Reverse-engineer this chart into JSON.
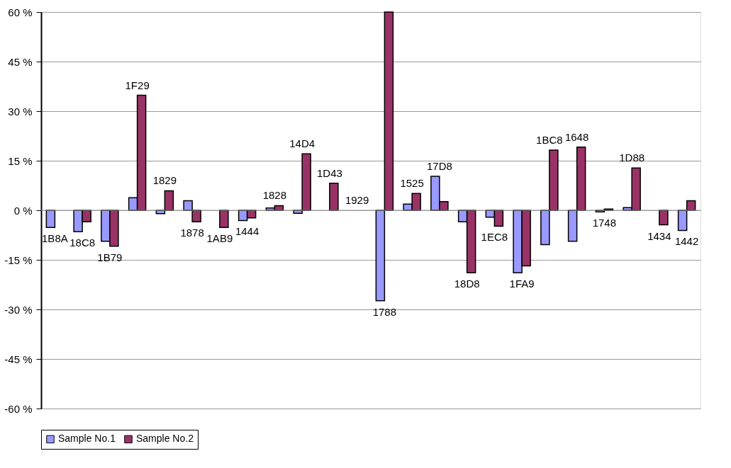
{
  "chart_data": {
    "type": "bar",
    "categories": [
      "1B8A",
      "18C8",
      "1B79",
      "1F29",
      "1829",
      "1878",
      "1AB9",
      "1444",
      "1828",
      "14D4",
      "1D43",
      "1929",
      "1788",
      "1525",
      "17D8",
      "18D8",
      "1EC8",
      "1FA9",
      "1BC8",
      "1648",
      "1748",
      "1D88",
      "1434",
      "1442"
    ],
    "series": [
      {
        "name": "Sample No.1",
        "color": "#9999ff",
        "values": [
          -5.2,
          -6.5,
          -9.4,
          3.8,
          -1.0,
          2.9,
          null,
          -3.1,
          0.7,
          -0.9,
          null,
          null,
          -27.4,
          1.9,
          10.3,
          -3.5,
          -2.1,
          -18.9,
          -10.4,
          -9.4,
          -0.5,
          0.8,
          null,
          -6.1
        ]
      },
      {
        "name": "Sample No.2",
        "color": "#993366",
        "values": [
          null,
          -3.5,
          -10.9,
          34.8,
          5.9,
          -3.5,
          -5.2,
          -2.3,
          1.4,
          17.1,
          8.2,
          null,
          60,
          5.1,
          2.6,
          -18.9,
          -4.8,
          -16.8,
          18.2,
          19.1,
          0.4,
          12.8,
          -4.4,
          2.9
        ]
      }
    ],
    "ylim": [
      -60,
      60
    ],
    "yticks": [
      {
        "value": -60,
        "label": "-60 %"
      },
      {
        "value": -45,
        "label": "-45 %"
      },
      {
        "value": -30,
        "label": "-30 %"
      },
      {
        "value": -15,
        "label": "-15 %"
      },
      {
        "value": 0,
        "label": "0 %"
      },
      {
        "value": 15,
        "label": "15 %"
      },
      {
        "value": 30,
        "label": "30 %"
      },
      {
        "value": 45,
        "label": "45 %"
      },
      {
        "value": 60,
        "label": "60 %"
      }
    ],
    "grid": "y",
    "legend": "bottom",
    "tick_labels": "y"
  }
}
